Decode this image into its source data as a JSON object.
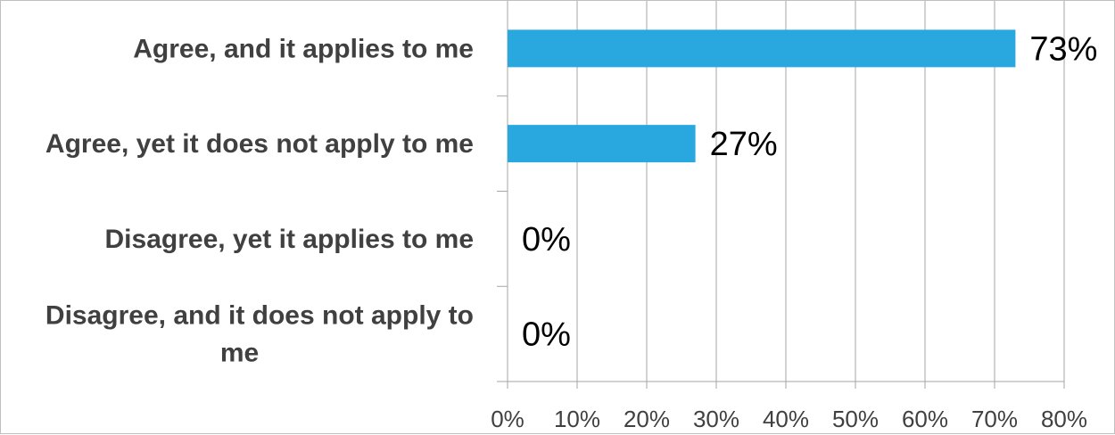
{
  "chart_data": {
    "type": "bar",
    "orientation": "horizontal",
    "categories": [
      "Agree, and it applies to me",
      "Agree, yet it does not apply to me",
      "Disagree, yet it applies to me",
      "Disagree, and it does not apply to me"
    ],
    "values": [
      73,
      27,
      0,
      0
    ],
    "data_labels": [
      "73%",
      "27%",
      "0%",
      "0%"
    ],
    "title": "",
    "xlabel": "",
    "ylabel": "",
    "xlim": [
      0,
      80
    ],
    "x_ticks": [
      0,
      10,
      20,
      30,
      40,
      50,
      60,
      70,
      80
    ],
    "x_tick_labels": [
      "0%",
      "10%",
      "20%",
      "30%",
      "40%",
      "50%",
      "60%",
      "70%",
      "80%"
    ],
    "grid": "vertical",
    "legend": "none",
    "bar_color": "#29a8e0",
    "grid_color": "#a6a6a6"
  }
}
